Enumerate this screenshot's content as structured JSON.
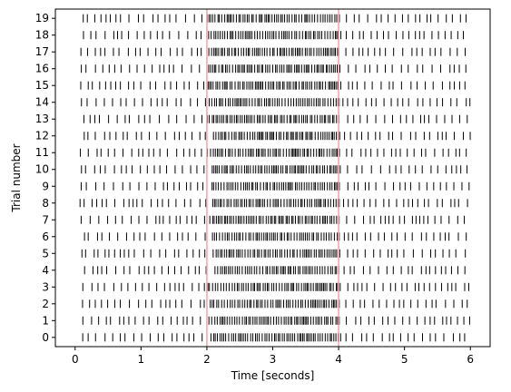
{
  "chart_data": {
    "type": "scatter",
    "title": "",
    "xlabel": "Time [seconds]",
    "ylabel": "Trial number",
    "xlim": [
      -0.3,
      6.3
    ],
    "ylim": [
      -0.55,
      19.55
    ],
    "xticks": [
      0,
      1,
      2,
      3,
      4,
      5,
      6
    ],
    "yticks": [
      0,
      1,
      2,
      3,
      4,
      5,
      6,
      7,
      8,
      9,
      10,
      11,
      12,
      13,
      14,
      15,
      16,
      17,
      18,
      19
    ],
    "grid": false,
    "marker": "vertical-line",
    "marker_color": "#000000",
    "stimulus_lines": {
      "x": [
        2,
        4
      ],
      "color": "#f4a3a8"
    },
    "baseline_rate_hz": 10,
    "stimulus_rate_hz": 30,
    "trials": 20,
    "duration": 6
  }
}
